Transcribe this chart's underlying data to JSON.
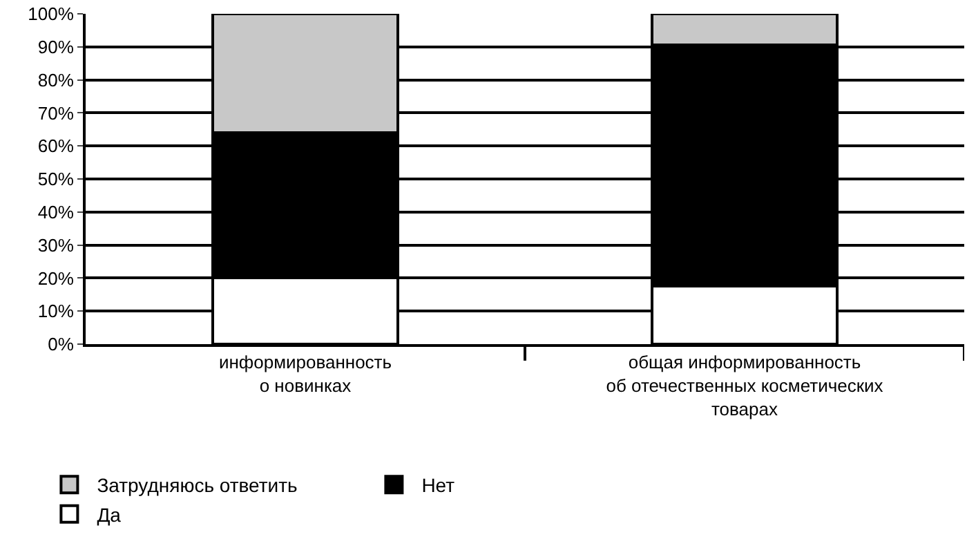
{
  "chart_data": {
    "type": "bar",
    "stacked": true,
    "categories": [
      "информированность\nо новинках",
      "общая информированность\nоб отечественных косметических\nтоварах"
    ],
    "series": [
      {
        "name": "Да",
        "color": "#ffffff",
        "values": [
          20,
          17.5
        ]
      },
      {
        "name": "Нет",
        "color": "#000000",
        "values": [
          44,
          73
        ]
      },
      {
        "name": "Затрудняюсь ответить",
        "color": "#c8c8c8",
        "values": [
          36,
          9.5
        ]
      }
    ],
    "ylim": [
      0,
      100
    ],
    "yticks": [
      {
        "value": 0,
        "label": "0%"
      },
      {
        "value": 10,
        "label": "10%"
      },
      {
        "value": 20,
        "label": "20%"
      },
      {
        "value": 30,
        "label": "30%"
      },
      {
        "value": 40,
        "label": "40%"
      },
      {
        "value": 50,
        "label": "50%"
      },
      {
        "value": 60,
        "label": "60%"
      },
      {
        "value": 70,
        "label": "70%"
      },
      {
        "value": 80,
        "label": "80%"
      },
      {
        "value": 90,
        "label": "90%"
      },
      {
        "value": 100,
        "label": "100%"
      }
    ],
    "grid": "y",
    "legend": "bottom"
  }
}
